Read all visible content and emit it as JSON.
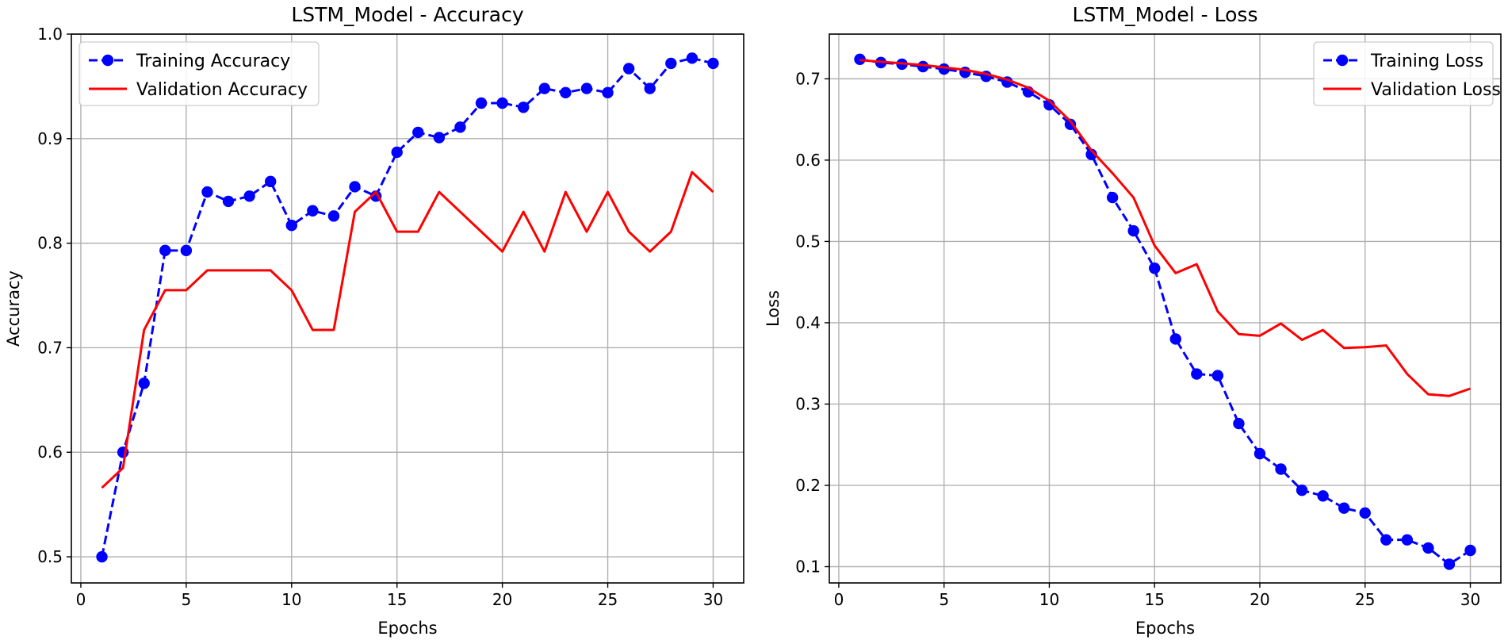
{
  "chart_data": [
    {
      "type": "line",
      "title": "LSTM_Model - Accuracy",
      "xlabel": "Epochs",
      "ylabel": "Accuracy",
      "xlim": [
        -0.45,
        31.45
      ],
      "ylim": [
        0.475,
        1.0
      ],
      "xticks": [
        0,
        5,
        10,
        15,
        20,
        25,
        30
      ],
      "yticks": [
        0.5,
        0.6,
        0.7,
        0.8,
        0.9,
        1.0
      ],
      "ytick_labels": [
        "0.5",
        "0.6",
        "0.7",
        "0.8",
        "0.9",
        "1.0"
      ],
      "grid": true,
      "legend": "upper left",
      "x": [
        1,
        2,
        3,
        4,
        5,
        6,
        7,
        8,
        9,
        10,
        11,
        12,
        13,
        14,
        15,
        16,
        17,
        18,
        19,
        20,
        21,
        22,
        23,
        24,
        25,
        26,
        27,
        28,
        29,
        30
      ],
      "series": [
        {
          "name": "Training Accuracy",
          "color": "#0000ff",
          "style": "dashed-markers",
          "values": [
            0.5,
            0.6,
            0.666,
            0.793,
            0.793,
            0.849,
            0.84,
            0.845,
            0.859,
            0.817,
            0.831,
            0.826,
            0.854,
            0.845,
            0.887,
            0.906,
            0.901,
            0.911,
            0.934,
            0.934,
            0.93,
            0.948,
            0.944,
            0.948,
            0.944,
            0.967,
            0.948,
            0.972,
            0.977,
            0.972
          ]
        },
        {
          "name": "Validation Accuracy",
          "color": "#ff0000",
          "style": "solid",
          "values": [
            0.566,
            0.585,
            0.717,
            0.755,
            0.755,
            0.774,
            0.774,
            0.774,
            0.774,
            0.755,
            0.717,
            0.717,
            0.83,
            0.849,
            0.811,
            0.811,
            0.849,
            0.83,
            0.811,
            0.792,
            0.83,
            0.792,
            0.849,
            0.811,
            0.849,
            0.811,
            0.792,
            0.811,
            0.868,
            0.849
          ]
        }
      ]
    },
    {
      "type": "line",
      "title": "LSTM_Model - Loss",
      "xlabel": "Epochs",
      "ylabel": "Loss",
      "xlim": [
        -0.45,
        31.45
      ],
      "ylim": [
        0.08,
        0.755
      ],
      "xticks": [
        0,
        5,
        10,
        15,
        20,
        25,
        30
      ],
      "yticks": [
        0.1,
        0.2,
        0.3,
        0.4,
        0.5,
        0.6,
        0.7
      ],
      "ytick_labels": [
        "0.1",
        "0.2",
        "0.3",
        "0.4",
        "0.5",
        "0.6",
        "0.7"
      ],
      "grid": true,
      "legend": "upper right",
      "x": [
        1,
        2,
        3,
        4,
        5,
        6,
        7,
        8,
        9,
        10,
        11,
        12,
        13,
        14,
        15,
        16,
        17,
        18,
        19,
        20,
        21,
        22,
        23,
        24,
        25,
        26,
        27,
        28,
        29,
        30
      ],
      "series": [
        {
          "name": "Training Loss",
          "color": "#0000ff",
          "style": "dashed-markers",
          "values": [
            0.724,
            0.72,
            0.718,
            0.715,
            0.712,
            0.708,
            0.703,
            0.696,
            0.684,
            0.668,
            0.644,
            0.607,
            0.554,
            0.513,
            0.467,
            0.38,
            0.337,
            0.335,
            0.276,
            0.239,
            0.22,
            0.194,
            0.187,
            0.172,
            0.166,
            0.133,
            0.133,
            0.123,
            0.103,
            0.12
          ]
        },
        {
          "name": "Validation Loss",
          "color": "#ff0000",
          "style": "solid",
          "values": [
            0.723,
            0.721,
            0.719,
            0.717,
            0.714,
            0.711,
            0.706,
            0.699,
            0.689,
            0.673,
            0.648,
            0.612,
            0.584,
            0.554,
            0.495,
            0.461,
            0.472,
            0.414,
            0.386,
            0.384,
            0.399,
            0.379,
            0.391,
            0.369,
            0.37,
            0.372,
            0.337,
            0.312,
            0.31,
            0.319
          ]
        }
      ]
    }
  ]
}
